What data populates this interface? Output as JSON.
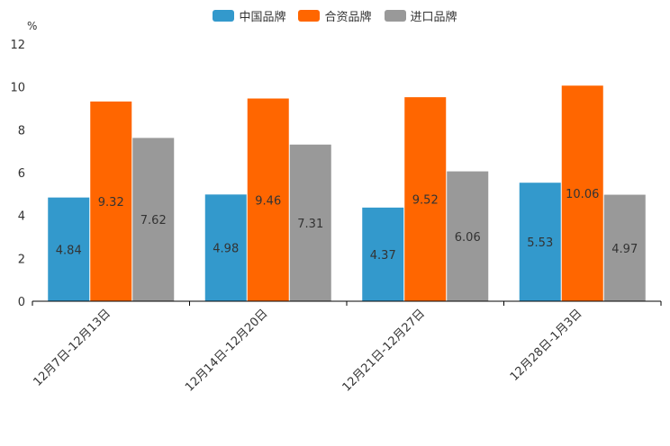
{
  "chart_data": {
    "type": "bar",
    "unit": "%",
    "categories": [
      "12月7日-12月13日",
      "12月14日-12月20日",
      "12月21日-12月27日",
      "12月28日-1月3日"
    ],
    "series": [
      {
        "name": "中国品牌",
        "color": "#3399cc",
        "values": [
          4.84,
          4.98,
          4.37,
          5.53
        ]
      },
      {
        "name": "合资品牌",
        "color": "#ff6600",
        "values": [
          9.32,
          9.46,
          9.52,
          10.06
        ]
      },
      {
        "name": "进口品牌",
        "color": "#999999",
        "values": [
          7.62,
          7.31,
          6.06,
          4.97
        ]
      }
    ],
    "ylim": [
      0,
      12
    ],
    "yticks": [
      0,
      2,
      4,
      6,
      8,
      10,
      12
    ],
    "legend_position": "top-center"
  }
}
